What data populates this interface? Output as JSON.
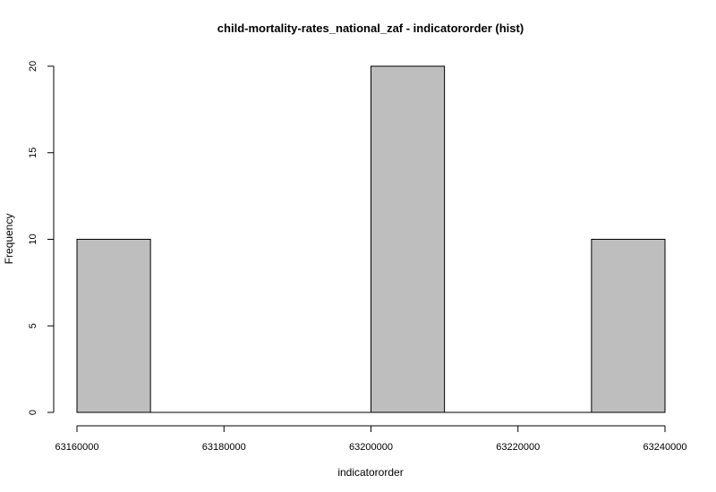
{
  "chart_data": {
    "type": "bar",
    "title": "child-mortality-rates_national_zaf - indicatororder (hist)",
    "xlabel": "indicatororder",
    "ylabel": "Frequency",
    "bins": [
      {
        "start": 63160000,
        "end": 63170000,
        "count": 10
      },
      {
        "start": 63170000,
        "end": 63180000,
        "count": 0
      },
      {
        "start": 63180000,
        "end": 63190000,
        "count": 0
      },
      {
        "start": 63190000,
        "end": 63200000,
        "count": 0
      },
      {
        "start": 63200000,
        "end": 63210000,
        "count": 20
      },
      {
        "start": 63210000,
        "end": 63220000,
        "count": 0
      },
      {
        "start": 63220000,
        "end": 63230000,
        "count": 0
      },
      {
        "start": 63230000,
        "end": 63240000,
        "count": 10
      }
    ],
    "xlim": [
      63160000,
      63240000
    ],
    "ylim": [
      0,
      20
    ],
    "x_ticks": [
      63160000,
      63180000,
      63200000,
      63220000,
      63240000
    ],
    "x_tick_labels": [
      "63160000",
      "63180000",
      "63200000",
      "63220000",
      "63240000"
    ],
    "y_ticks": [
      0,
      5,
      10,
      15,
      20
    ],
    "y_tick_labels": [
      "0",
      "5",
      "10",
      "15",
      "20"
    ],
    "bar_color": "#bebebe",
    "grid": false,
    "legend": "none"
  }
}
